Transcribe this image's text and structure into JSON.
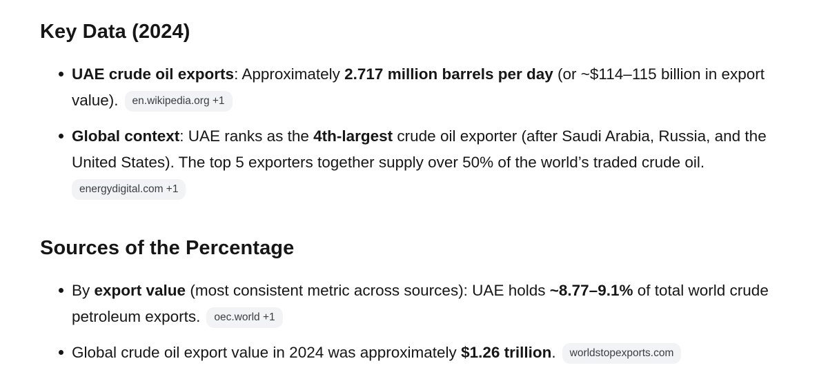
{
  "sections": [
    {
      "heading": "Key Data (2024)",
      "items": [
        {
          "bold1": "UAE crude oil exports",
          "text1": ": Approximately ",
          "bold2": "2.717 million barrels per day",
          "text2": " (or ~$114–115 billion in export value).",
          "source": "en.wikipedia.org +1"
        },
        {
          "bold1": "Global context",
          "text1": ": UAE ranks as the ",
          "bold2": "4th-largest",
          "text2": " crude oil exporter (after Saudi Arabia, Russia, and the United States). The top 5 exporters together supply over 50% of the world’s traded crude oil.",
          "source": "energydigital.com +1"
        }
      ]
    },
    {
      "heading": "Sources of the Percentage",
      "items": [
        {
          "text0": "By ",
          "bold1": "export value",
          "text1": " (most consistent metric across sources): UAE holds ",
          "bold2": "~8.77–9.1%",
          "text2": " of total world crude petroleum exports.",
          "source": "oec.world +1"
        },
        {
          "text0": "Global crude oil export value in 2024 was approximately ",
          "bold1": "$1.26 trillion",
          "text1": ".",
          "source": "worldstopexports.com"
        }
      ]
    }
  ]
}
